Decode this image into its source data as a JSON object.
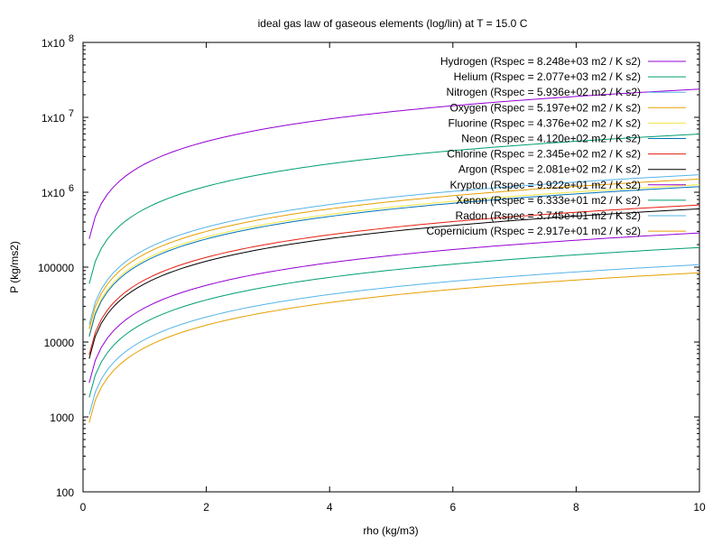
{
  "chart_data": {
    "type": "line",
    "title": "ideal gas law of gaseous elements (log/lin) at T = 15.0 C",
    "xlabel": "rho (kg/m3)",
    "ylabel": "P (kg/ms2)",
    "xlim": [
      0,
      10
    ],
    "ylim": [
      100,
      100000000
    ],
    "y_scale": "log",
    "grid": false,
    "legend_position": "top-right",
    "x_ticks": [
      "0",
      "2",
      "4",
      "6",
      "8",
      "10"
    ],
    "y_ticks": [
      {
        "base": "100",
        "sup": ""
      },
      {
        "base": "1000",
        "sup": ""
      },
      {
        "base": "10000",
        "sup": ""
      },
      {
        "base": "100000",
        "sup": ""
      },
      {
        "base": "1x10",
        "sup": "6"
      },
      {
        "base": "1x10",
        "sup": "7"
      },
      {
        "base": "1x10",
        "sup": "8"
      }
    ],
    "temperature_K": 288.15,
    "x_start": 0.1,
    "series": [
      {
        "name": "Hydrogen (Rspec = 8.248e+03 m2 / K s2)",
        "rspec": 8248,
        "color": "#9400d3"
      },
      {
        "name": "Helium (Rspec = 2.077e+03 m2 / K s2)",
        "rspec": 2077,
        "color": "#009e73"
      },
      {
        "name": "Nitrogen (Rspec = 5.936e+02 m2 / K s2)",
        "rspec": 593.6,
        "color": "#56b4e9"
      },
      {
        "name": "Oxygen (Rspec = 5.197e+02 m2 / K s2)",
        "rspec": 519.7,
        "color": "#e69f00"
      },
      {
        "name": "Fluorine (Rspec = 4.376e+02 m2 / K s2)",
        "rspec": 437.6,
        "color": "#f0e442"
      },
      {
        "name": "Neon (Rspec = 4.120e+02 m2 / K s2)",
        "rspec": 412.0,
        "color": "#0072b2"
      },
      {
        "name": "Chlorine (Rspec = 2.345e+02 m2 / K s2)",
        "rspec": 234.5,
        "color": "#e51e10"
      },
      {
        "name": "Argon (Rspec = 2.081e+02 m2 / K s2)",
        "rspec": 208.1,
        "color": "#000000"
      },
      {
        "name": "Krypton (Rspec = 9.922e+01 m2 / K s2)",
        "rspec": 99.22,
        "color": "#9400d3"
      },
      {
        "name": "Xenon (Rspec = 6.333e+01 m2 / K s2)",
        "rspec": 63.33,
        "color": "#009e73"
      },
      {
        "name": "Radon (Rspec = 3.745e+01 m2 / K s2)",
        "rspec": 37.45,
        "color": "#56b4e9"
      },
      {
        "name": "Copernicium (Rspec = 2.917e+01 m2 / K s2)",
        "rspec": 29.17,
        "color": "#e69f00"
      }
    ]
  }
}
